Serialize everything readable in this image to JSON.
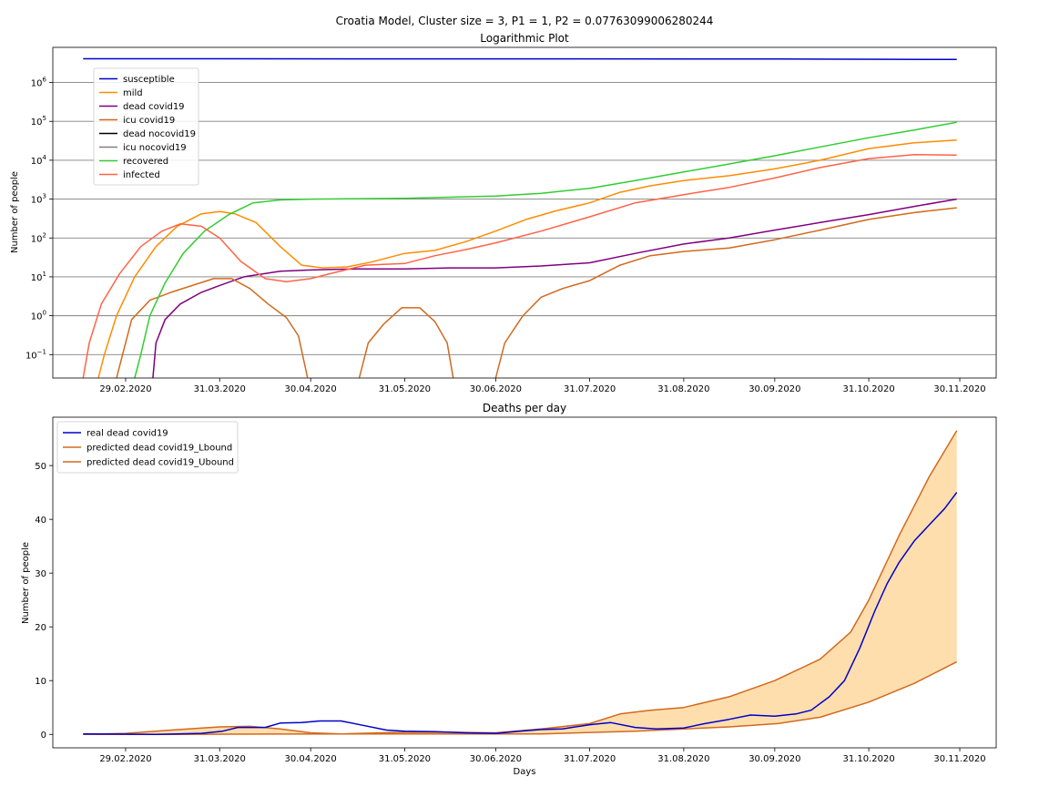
{
  "figure": {
    "suptitle": "Croatia Model, Cluster size = 3, P1 = 1, P2 = 0.07763099006280244"
  },
  "chart_data": [
    {
      "type": "line",
      "title": "Logarithmic Plot",
      "xlabel": "",
      "ylabel": "Number of people",
      "yscale": "log",
      "ylim": [
        0.025,
        8000000
      ],
      "grid": "horizontal",
      "legend_position": "upper-left",
      "x_ticks": [
        "29.02.2020",
        "31.03.2020",
        "30.04.2020",
        "31.05.2020",
        "30.06.2020",
        "31.07.2020",
        "31.08.2020",
        "30.09.2020",
        "31.10.2020",
        "30.11.2020"
      ],
      "y_ticks": [
        "10^-1",
        "10^0",
        "10^1",
        "10^2",
        "10^3",
        "10^4",
        "10^5",
        "10^6"
      ],
      "series": [
        {
          "name": "susceptible",
          "color": "#0000cc",
          "points": [
            [
              "2020-02-15",
              4076000
            ],
            [
              "2020-06-30",
              4050000
            ],
            [
              "2020-10-01",
              4000000
            ],
            [
              "2020-11-29",
              3900000
            ]
          ]
        },
        {
          "name": "mild",
          "color": "#ff8c00",
          "points": [
            [
              "2020-02-20",
              0.025
            ],
            [
              "2020-02-22",
              0.1
            ],
            [
              "2020-02-26",
              1
            ],
            [
              "2020-03-03",
              10
            ],
            [
              "2020-03-10",
              60
            ],
            [
              "2020-03-17",
              200
            ],
            [
              "2020-03-25",
              420
            ],
            [
              "2020-03-31",
              480
            ],
            [
              "2020-04-05",
              420
            ],
            [
              "2020-04-12",
              250
            ],
            [
              "2020-04-20",
              60
            ],
            [
              "2020-04-27",
              20
            ],
            [
              "2020-05-04",
              17
            ],
            [
              "2020-05-12",
              18
            ],
            [
              "2020-05-20",
              24
            ],
            [
              "2020-05-31",
              40
            ],
            [
              "2020-06-10",
              48
            ],
            [
              "2020-06-20",
              80
            ],
            [
              "2020-06-30",
              150
            ],
            [
              "2020-07-10",
              300
            ],
            [
              "2020-07-20",
              500
            ],
            [
              "2020-07-31",
              800
            ],
            [
              "2020-08-10",
              1500
            ],
            [
              "2020-08-20",
              2200
            ],
            [
              "2020-08-31",
              3000
            ],
            [
              "2020-09-15",
              4000
            ],
            [
              "2020-09-30",
              6000
            ],
            [
              "2020-10-15",
              10000
            ],
            [
              "2020-10-31",
              20000
            ],
            [
              "2020-11-15",
              28000
            ],
            [
              "2020-11-29",
              33000
            ]
          ]
        },
        {
          "name": "dead covid19",
          "color": "#800080",
          "points": [
            [
              "2020-03-09",
              0.025
            ],
            [
              "2020-03-10",
              0.2
            ],
            [
              "2020-03-13",
              0.8
            ],
            [
              "2020-03-18",
              2
            ],
            [
              "2020-03-25",
              4
            ],
            [
              "2020-03-31",
              6
            ],
            [
              "2020-04-08",
              10
            ],
            [
              "2020-04-20",
              14
            ],
            [
              "2020-04-30",
              15
            ],
            [
              "2020-05-15",
              16
            ],
            [
              "2020-05-31",
              16
            ],
            [
              "2020-06-15",
              17
            ],
            [
              "2020-06-30",
              17
            ],
            [
              "2020-07-15",
              19
            ],
            [
              "2020-07-31",
              23
            ],
            [
              "2020-08-15",
              40
            ],
            [
              "2020-08-31",
              70
            ],
            [
              "2020-09-15",
              100
            ],
            [
              "2020-09-30",
              160
            ],
            [
              "2020-10-15",
              250
            ],
            [
              "2020-10-31",
              400
            ],
            [
              "2020-11-15",
              650
            ],
            [
              "2020-11-29",
              1000
            ]
          ]
        },
        {
          "name": "icu covid19",
          "color": "#d2691e",
          "points": [
            [
              "2020-02-26",
              0.025
            ],
            [
              "2020-02-28",
              0.1
            ],
            [
              "2020-03-02",
              0.8
            ],
            [
              "2020-03-08",
              2.5
            ],
            [
              "2020-03-15",
              4
            ],
            [
              "2020-03-22",
              6
            ],
            [
              "2020-03-29",
              9
            ],
            [
              "2020-04-04",
              9
            ],
            [
              "2020-04-10",
              5
            ],
            [
              "2020-04-16",
              2
            ],
            [
              "2020-04-22",
              0.9
            ],
            [
              "2020-04-26",
              0.3
            ],
            [
              "2020-04-29",
              0.025
            ],
            [
              null,
              null
            ],
            [
              "2020-05-16",
              0.025
            ],
            [
              "2020-05-19",
              0.2
            ],
            [
              "2020-05-24",
              0.6
            ],
            [
              "2020-05-30",
              1.6
            ],
            [
              "2020-06-05",
              1.6
            ],
            [
              "2020-06-10",
              0.7
            ],
            [
              "2020-06-14",
              0.2
            ],
            [
              "2020-06-16",
              0.025
            ],
            [
              null,
              null
            ],
            [
              "2020-06-30",
              0.025
            ],
            [
              "2020-07-03",
              0.2
            ],
            [
              "2020-07-09",
              1
            ],
            [
              "2020-07-15",
              3
            ],
            [
              "2020-07-22",
              5
            ],
            [
              "2020-07-31",
              8
            ],
            [
              "2020-08-10",
              20
            ],
            [
              "2020-08-20",
              35
            ],
            [
              "2020-08-31",
              45
            ],
            [
              "2020-09-15",
              55
            ],
            [
              "2020-09-30",
              90
            ],
            [
              "2020-10-15",
              160
            ],
            [
              "2020-10-31",
              300
            ],
            [
              "2020-11-15",
              450
            ],
            [
              "2020-11-29",
              600
            ]
          ]
        },
        {
          "name": "dead nocovid19",
          "color": "#000000",
          "points": []
        },
        {
          "name": "icu nocovid19",
          "color": "#808080",
          "points": []
        },
        {
          "name": "recovered",
          "color": "#32cd32",
          "points": [
            [
              "2020-03-03",
              0.025
            ],
            [
              "2020-03-05",
              0.1
            ],
            [
              "2020-03-08",
              1
            ],
            [
              "2020-03-13",
              7
            ],
            [
              "2020-03-19",
              40
            ],
            [
              "2020-03-26",
              150
            ],
            [
              "2020-04-03",
              400
            ],
            [
              "2020-04-11",
              800
            ],
            [
              "2020-04-20",
              950
            ],
            [
              "2020-04-30",
              1000
            ],
            [
              "2020-05-31",
              1050
            ],
            [
              "2020-06-30",
              1200
            ],
            [
              "2020-07-15",
              1400
            ],
            [
              "2020-07-31",
              1900
            ],
            [
              "2020-08-15",
              3000
            ],
            [
              "2020-08-31",
              5000
            ],
            [
              "2020-09-15",
              8000
            ],
            [
              "2020-09-30",
              13000
            ],
            [
              "2020-10-15",
              22000
            ],
            [
              "2020-10-31",
              38000
            ],
            [
              "2020-11-15",
              60000
            ],
            [
              "2020-11-29",
              95000
            ]
          ]
        },
        {
          "name": "infected",
          "color": "#ff6347",
          "points": [
            [
              "2020-02-15",
              0.025
            ],
            [
              "2020-02-17",
              0.2
            ],
            [
              "2020-02-21",
              2
            ],
            [
              "2020-02-27",
              12
            ],
            [
              "2020-03-05",
              60
            ],
            [
              "2020-03-12",
              150
            ],
            [
              "2020-03-18",
              230
            ],
            [
              "2020-03-25",
              200
            ],
            [
              "2020-03-31",
              100
            ],
            [
              "2020-04-07",
              25
            ],
            [
              "2020-04-15",
              9
            ],
            [
              "2020-04-22",
              7.5
            ],
            [
              "2020-04-30",
              9
            ],
            [
              "2020-05-08",
              13
            ],
            [
              "2020-05-18",
              20
            ],
            [
              "2020-05-31",
              22
            ],
            [
              "2020-06-10",
              35
            ],
            [
              "2020-06-20",
              50
            ],
            [
              "2020-06-30",
              75
            ],
            [
              "2020-07-15",
              150
            ],
            [
              "2020-07-31",
              350
            ],
            [
              "2020-08-15",
              800
            ],
            [
              "2020-08-31",
              1300
            ],
            [
              "2020-09-15",
              2000
            ],
            [
              "2020-09-30",
              3500
            ],
            [
              "2020-10-15",
              6500
            ],
            [
              "2020-10-31",
              11000
            ],
            [
              "2020-11-15",
              14000
            ],
            [
              "2020-11-29",
              13500
            ]
          ]
        }
      ]
    },
    {
      "type": "line",
      "title": "Deaths per day",
      "xlabel": "Days",
      "ylabel": "Number of people",
      "ylim": [
        -2.5,
        59
      ],
      "legend_position": "upper-left",
      "fill_between": {
        "lower": "predicted dead covid19_Lbound",
        "upper": "predicted dead covid19_Ubound",
        "color": "#ffdead"
      },
      "x_ticks": [
        "29.02.2020",
        "31.03.2020",
        "30.04.2020",
        "31.05.2020",
        "30.06.2020",
        "31.07.2020",
        "31.08.2020",
        "30.09.2020",
        "31.10.2020",
        "30.11.2020"
      ],
      "y_ticks": [
        0,
        10,
        20,
        30,
        40,
        50
      ],
      "series": [
        {
          "name": "real dead covid19",
          "color": "#0000cc",
          "points": [
            [
              "2020-02-15",
              0.1
            ],
            [
              "2020-03-10",
              0
            ],
            [
              "2020-03-25",
              0.2
            ],
            [
              "2020-04-01",
              0.6
            ],
            [
              "2020-04-06",
              1.3
            ],
            [
              "2020-04-15",
              1.3
            ],
            [
              "2020-04-20",
              2.1
            ],
            [
              "2020-04-27",
              2.2
            ],
            [
              "2020-05-03",
              2.5
            ],
            [
              "2020-05-10",
              2.5
            ],
            [
              "2020-05-18",
              1.6
            ],
            [
              "2020-05-25",
              0.8
            ],
            [
              "2020-05-31",
              0.6
            ],
            [
              "2020-06-10",
              0.5
            ],
            [
              "2020-06-20",
              0.3
            ],
            [
              "2020-06-30",
              0.2
            ],
            [
              "2020-07-08",
              0.6
            ],
            [
              "2020-07-15",
              0.9
            ],
            [
              "2020-07-22",
              1
            ],
            [
              "2020-07-31",
              1.8
            ],
            [
              "2020-08-07",
              2.2
            ],
            [
              "2020-08-15",
              1.3
            ],
            [
              "2020-08-22",
              1
            ],
            [
              "2020-08-31",
              1.2
            ],
            [
              "2020-09-07",
              2
            ],
            [
              "2020-09-15",
              2.8
            ],
            [
              "2020-09-22",
              3.6
            ],
            [
              "2020-09-30",
              3.4
            ],
            [
              "2020-10-07",
              3.8
            ],
            [
              "2020-10-12",
              4.5
            ],
            [
              "2020-10-18",
              7
            ],
            [
              "2020-10-23",
              10
            ],
            [
              "2020-10-28",
              16
            ],
            [
              "2020-11-02",
              23
            ],
            [
              "2020-11-06",
              28
            ],
            [
              "2020-11-10",
              32
            ],
            [
              "2020-11-15",
              36
            ],
            [
              "2020-11-20",
              39
            ],
            [
              "2020-11-25",
              42
            ],
            [
              "2020-11-29",
              45
            ]
          ]
        },
        {
          "name": "predicted dead covid19_Lbound",
          "color": "#d2691e",
          "points": [
            [
              "2020-02-15",
              0
            ],
            [
              "2020-03-15",
              0
            ],
            [
              "2020-04-15",
              0.05
            ],
            [
              "2020-05-15",
              0.1
            ],
            [
              "2020-06-15",
              0.1
            ],
            [
              "2020-07-15",
              0.1
            ],
            [
              "2020-08-15",
              0.6
            ],
            [
              "2020-09-15",
              1.4
            ],
            [
              "2020-10-01",
              2
            ],
            [
              "2020-10-15",
              3.2
            ],
            [
              "2020-10-31",
              6
            ],
            [
              "2020-11-15",
              9.5
            ],
            [
              "2020-11-29",
              13.5
            ]
          ]
        },
        {
          "name": "predicted dead covid19_Ubound",
          "color": "#d2691e",
          "points": [
            [
              "2020-02-15",
              0
            ],
            [
              "2020-02-29",
              0.2
            ],
            [
              "2020-03-15",
              0.8
            ],
            [
              "2020-03-31",
              1.4
            ],
            [
              "2020-04-10",
              1.5
            ],
            [
              "2020-04-20",
              1.0
            ],
            [
              "2020-04-30",
              0.3
            ],
            [
              "2020-05-10",
              0.1
            ],
            [
              "2020-05-31",
              0.4
            ],
            [
              "2020-06-15",
              0.4
            ],
            [
              "2020-06-30",
              0.3
            ],
            [
              "2020-07-15",
              1
            ],
            [
              "2020-07-31",
              2
            ],
            [
              "2020-08-10",
              3.8
            ],
            [
              "2020-08-20",
              4.5
            ],
            [
              "2020-08-31",
              5
            ],
            [
              "2020-09-15",
              7
            ],
            [
              "2020-09-30",
              10
            ],
            [
              "2020-10-15",
              14
            ],
            [
              "2020-10-25",
              19
            ],
            [
              "2020-10-31",
              25
            ],
            [
              "2020-11-10",
              37
            ],
            [
              "2020-11-20",
              48
            ],
            [
              "2020-11-29",
              56.5
            ]
          ]
        }
      ]
    }
  ]
}
